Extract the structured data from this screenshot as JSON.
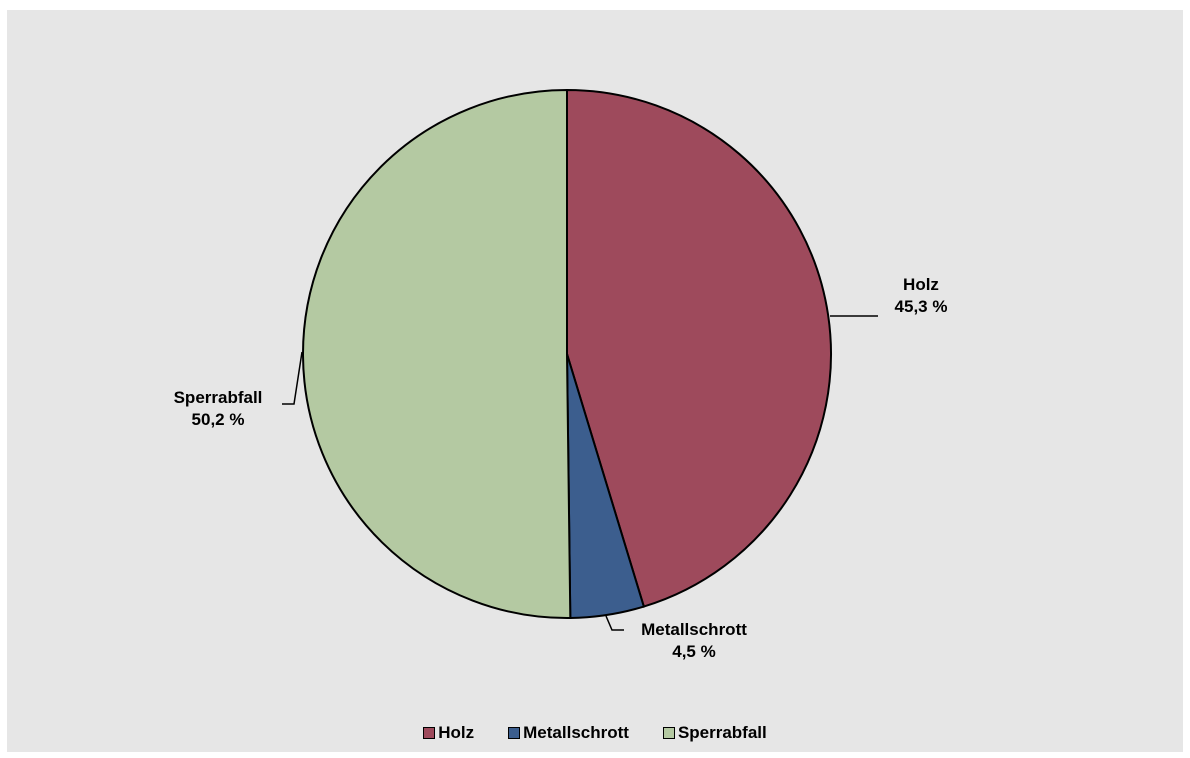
{
  "chart_data": {
    "type": "pie",
    "title": "",
    "categories": [
      "Holz",
      "Metallschrott",
      "Sperrabfall"
    ],
    "values": [
      45.3,
      4.5,
      50.2
    ],
    "value_labels": [
      "45,3 %",
      "4,5 %",
      "50,2 %"
    ],
    "colors": [
      "#9e4a5c",
      "#3c5e8e",
      "#b4c9a2"
    ],
    "start_angle": "12 o'clock, clockwise",
    "legend": "bottom"
  },
  "legend": {
    "items": [
      {
        "label": "Holz",
        "color": "#9e4a5c"
      },
      {
        "label": "Metallschrott",
        "color": "#3c5e8e"
      },
      {
        "label": "Sperrabfall",
        "color": "#b4c9a2"
      }
    ]
  },
  "colors": {
    "background": "#e6e6e6",
    "outline": "#000000"
  }
}
